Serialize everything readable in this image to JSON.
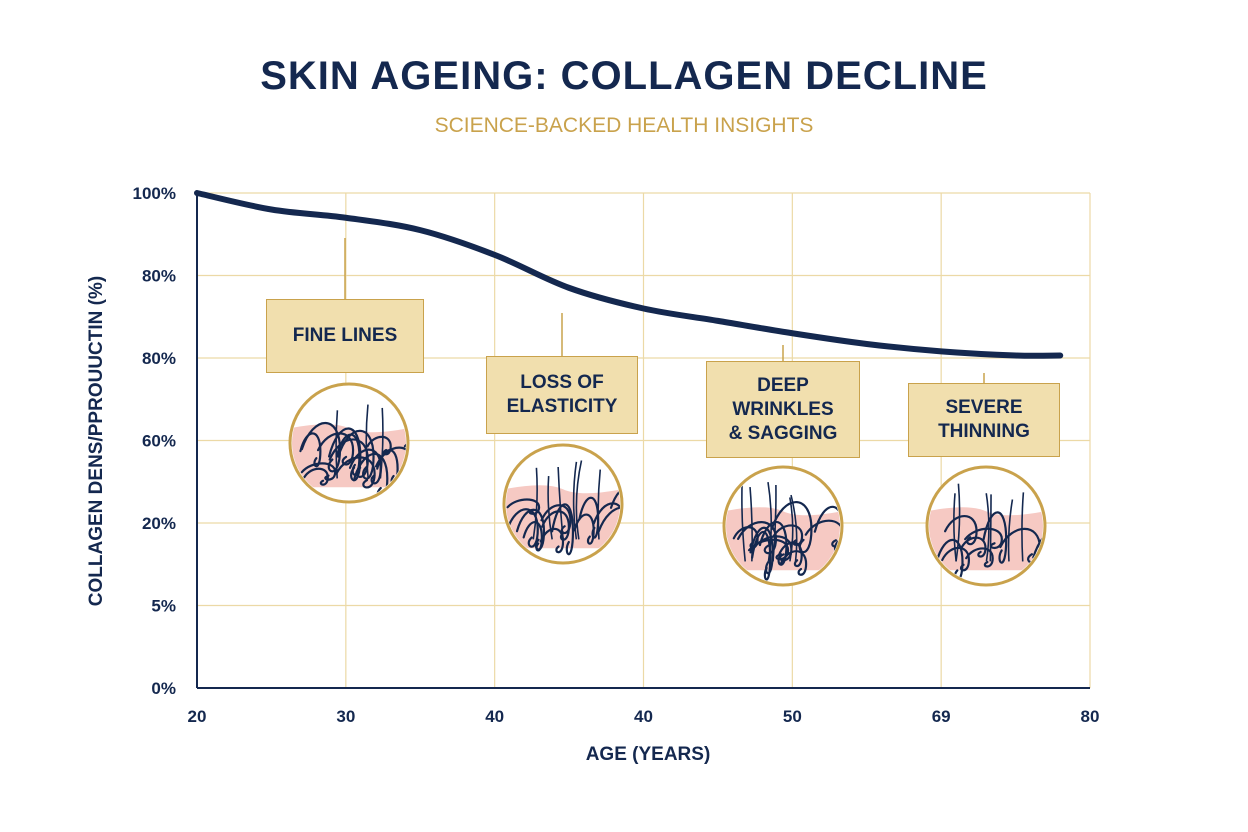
{
  "title": "SKIN AGEING: COLLAGEN DECLINE",
  "subtitle": "SCIENCE-BACKED HEALTH INSIGHTS",
  "colors": {
    "line": "#14284f",
    "grid": "#ecd9a6",
    "accent": "#c9a24c",
    "box_fill": "#f1dfae",
    "skin": "#f6c9c3"
  },
  "chart_data": {
    "type": "line",
    "title": "SKIN AGEING: COLLAGEN DECLINE",
    "subtitle": "SCIENCE-BACKED HEALTH INSIGHTS",
    "xlabel": "AGE (YEARS)",
    "ylabel": "COLLAGEN DENS/PPROUUCTIN (%)",
    "x_tick_labels": [
      "20",
      "30",
      "40",
      "40",
      "50",
      "69",
      "80"
    ],
    "y_tick_labels": [
      "0%",
      "5%",
      "20%",
      "60%",
      "80%",
      "80%",
      "100%"
    ],
    "grid": true,
    "series": [
      {
        "x": [
          0,
          0.5,
          1.0,
          1.5,
          2.0,
          2.5,
          3.0,
          3.5,
          4.0,
          4.5,
          5.0,
          5.5,
          5.8
        ],
        "y": [
          6.0,
          5.8,
          5.7,
          5.55,
          5.25,
          4.85,
          4.6,
          4.45,
          4.3,
          4.17,
          4.08,
          4.03,
          4.03
        ]
      }
    ],
    "annotations": [
      {
        "text": "FINE LINES",
        "x": 1.0
      },
      {
        "text": "LOSS OF\nELASTICITY",
        "x": 2.45
      },
      {
        "text": "DEEP\nWRINKLES\n& SAGGING",
        "x": 3.95
      },
      {
        "text": "SEVERE\nTHINNING",
        "x": 5.3
      }
    ]
  }
}
